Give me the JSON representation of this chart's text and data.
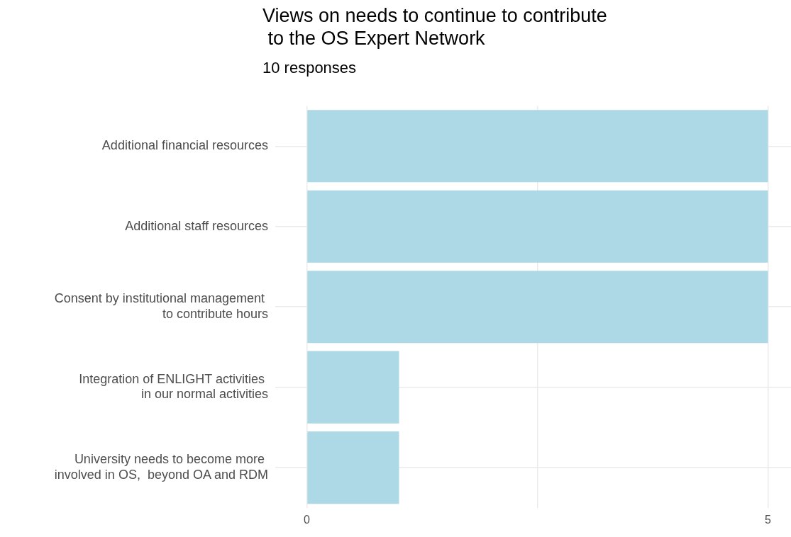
{
  "chart_data": {
    "type": "bar",
    "orientation": "horizontal",
    "title": "Views on needs to continue to contribute\n to the OS Expert Network",
    "subtitle": "10 responses",
    "categories": [
      "Additional financial resources",
      "Additional staff resources",
      "Consent by institutional management \nto contribute hours",
      "Integration of ENLIGHT activities \nin our normal activities",
      "University needs to become more \ninvolved in OS,  beyond OA and RDM"
    ],
    "values": [
      5,
      5,
      5,
      1,
      1
    ],
    "color": "#add8e6",
    "xlim": [
      -0.25,
      5.25
    ],
    "xticks": [
      0,
      {
        "value": 2.5,
        "label": null
      },
      5
    ],
    "grid": true,
    "legend": false
  }
}
